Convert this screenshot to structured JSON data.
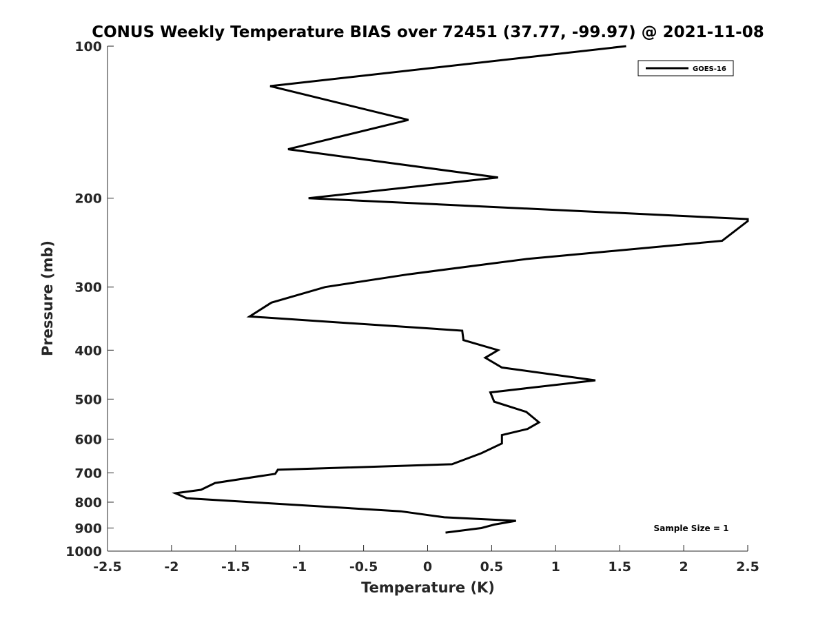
{
  "chart_data": {
    "type": "line",
    "title": "CONUS Weekly Temperature BIAS over 72451 (37.77, -99.97) @ 2021-11-08",
    "xlabel": "Temperature (K)",
    "ylabel": "Pressure (mb)",
    "xlim": [
      -2.5,
      2.5
    ],
    "ylim": [
      100,
      1000
    ],
    "yscale": "log",
    "y_reversed": true,
    "grid": false,
    "legend_position": "top-right",
    "x_ticks": [
      "-2.5",
      "-2",
      "-1.5",
      "-1",
      "-0.5",
      "0",
      "0.5",
      "1",
      "1.5",
      "2",
      "2.5"
    ],
    "y_ticks": [
      "100",
      "200",
      "300",
      "400",
      "500",
      "600",
      "700",
      "800",
      "900",
      "1000"
    ],
    "series": [
      {
        "name": "GOES-16",
        "color": "#000000",
        "points": [
          [
            1.55,
            100
          ],
          [
            -1.23,
            120
          ],
          [
            -0.15,
            140
          ],
          [
            -1.09,
            160
          ],
          [
            0.55,
            182
          ],
          [
            -0.93,
            200
          ],
          [
            2.5,
            220
          ],
          [
            2.5,
            222
          ],
          [
            2.3,
            243
          ],
          [
            0.77,
            264
          ],
          [
            -0.15,
            283
          ],
          [
            -0.8,
            300
          ],
          [
            -1.22,
            322
          ],
          [
            -1.39,
            343
          ],
          [
            0.27,
            366
          ],
          [
            0.28,
            382
          ],
          [
            0.55,
            400
          ],
          [
            0.45,
            414
          ],
          [
            0.58,
            433
          ],
          [
            1.31,
            459
          ],
          [
            0.49,
            485
          ],
          [
            0.52,
            506
          ],
          [
            0.77,
            530
          ],
          [
            0.87,
            556
          ],
          [
            0.78,
            573
          ],
          [
            0.58,
            589
          ],
          [
            0.58,
            612
          ],
          [
            0.42,
            640
          ],
          [
            0.19,
            673
          ],
          [
            -1.17,
            690
          ],
          [
            -1.19,
            703
          ],
          [
            -1.66,
            733
          ],
          [
            -1.77,
            756
          ],
          [
            -1.97,
            768
          ],
          [
            -1.88,
            786
          ],
          [
            -0.21,
            834
          ],
          [
            0.13,
            857
          ],
          [
            0.69,
            871
          ],
          [
            0.52,
            886
          ],
          [
            0.42,
            900
          ],
          [
            0.14,
            919
          ]
        ]
      }
    ],
    "annotation": "Sample Size = 1"
  }
}
